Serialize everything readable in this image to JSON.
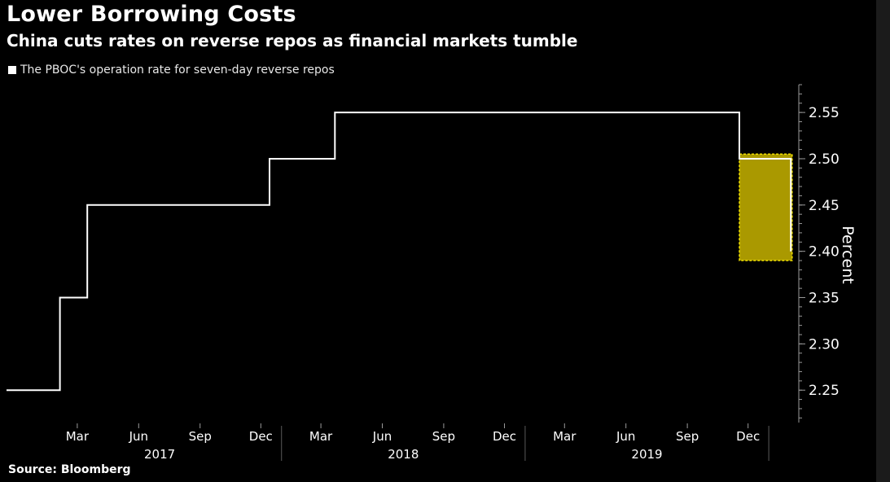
{
  "chart_data": {
    "type": "line",
    "title": "Lower Borrowing Costs",
    "subtitle": "China cuts rates on reverse repos as financial markets tumble",
    "series": [
      {
        "name": "The PBOC's operation rate for seven-day reverse repos",
        "points": [
          {
            "x": "2016-11-15",
            "y": 2.25
          },
          {
            "x": "2017-02-03",
            "y": 2.25
          },
          {
            "x": "2017-02-03",
            "y": 2.35
          },
          {
            "x": "2017-03-16",
            "y": 2.35
          },
          {
            "x": "2017-03-16",
            "y": 2.45
          },
          {
            "x": "2017-12-14",
            "y": 2.45
          },
          {
            "x": "2017-12-14",
            "y": 2.5
          },
          {
            "x": "2018-03-22",
            "y": 2.5
          },
          {
            "x": "2018-03-22",
            "y": 2.55
          },
          {
            "x": "2019-11-18",
            "y": 2.55
          },
          {
            "x": "2019-11-18",
            "y": 2.5
          },
          {
            "x": "2020-02-03",
            "y": 2.5
          },
          {
            "x": "2020-02-03",
            "y": 2.4
          }
        ]
      }
    ],
    "highlight": {
      "x_start": "2019-11-18",
      "x_end": "2020-02-05",
      "y_start": 2.39,
      "y_end": 2.505
    },
    "ylabel": "Percent",
    "y_ticks": [
      2.25,
      2.3,
      2.35,
      2.4,
      2.45,
      2.5,
      2.55
    ],
    "y_tick_labels": [
      "2.25",
      "2.30",
      "2.35",
      "2.40",
      "2.45",
      "2.50",
      "2.55"
    ],
    "ylim": [
      2.215,
      2.58
    ],
    "xlim": [
      "2016-11-15",
      "2020-02-15"
    ],
    "x_month_ticks": [
      {
        "label": "Mar",
        "date": "2017-03-01"
      },
      {
        "label": "Jun",
        "date": "2017-06-01"
      },
      {
        "label": "Sep",
        "date": "2017-09-01"
      },
      {
        "label": "Dec",
        "date": "2017-12-01"
      },
      {
        "label": "Mar",
        "date": "2018-03-01"
      },
      {
        "label": "Jun",
        "date": "2018-06-01"
      },
      {
        "label": "Sep",
        "date": "2018-09-01"
      },
      {
        "label": "Dec",
        "date": "2018-12-01"
      },
      {
        "label": "Mar",
        "date": "2019-03-01"
      },
      {
        "label": "Jun",
        "date": "2019-06-01"
      },
      {
        "label": "Sep",
        "date": "2019-09-01"
      },
      {
        "label": "Dec",
        "date": "2019-12-01"
      }
    ],
    "x_year_labels": [
      {
        "label": "2017",
        "start": "2017-01-01",
        "end": "2018-01-01"
      },
      {
        "label": "2018",
        "start": "2018-01-01",
        "end": "2019-01-01"
      },
      {
        "label": "2019",
        "start": "2019-01-01",
        "end": "2020-01-01"
      }
    ],
    "x_year_separators": [
      "2018-01-01",
      "2019-01-01",
      "2020-01-01"
    ],
    "legend_position": "top-left",
    "grid": false
  },
  "source": "Source: Bloomberg",
  "colors": {
    "background": "#000000",
    "line": "#ffffff",
    "axis": "#9a9a9a",
    "highlight_fill": "#c8b400",
    "highlight_border": "#f2e200",
    "text": "#ffffff"
  }
}
